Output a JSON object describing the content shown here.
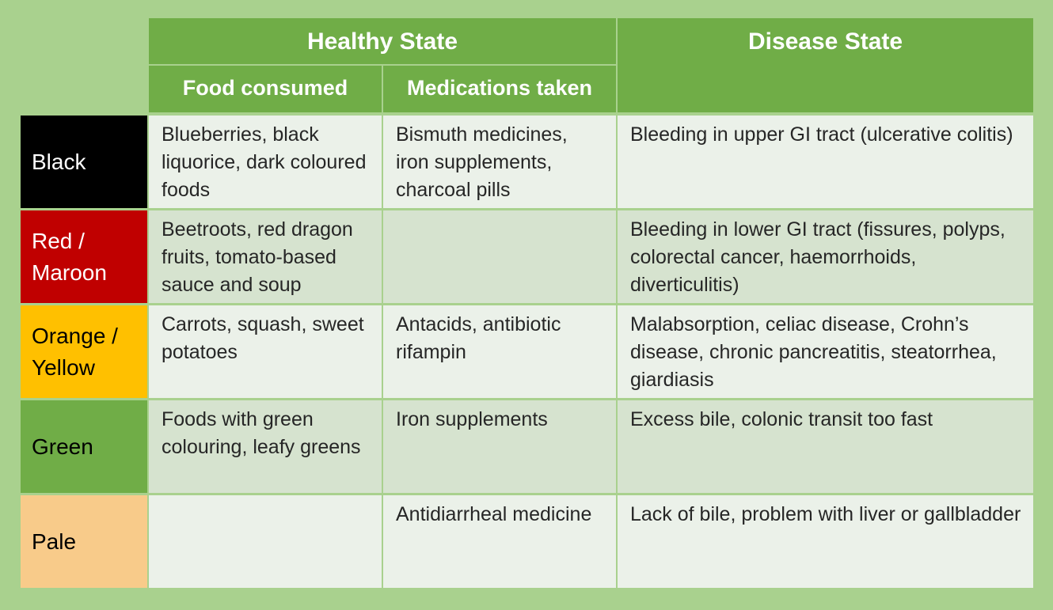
{
  "header": {
    "healthy_state": "Healthy State",
    "disease_state": "Disease State",
    "food_consumed": "Food consumed",
    "medications_taken": "Medications taken"
  },
  "rows": [
    {
      "label": "Black",
      "color": "#000000",
      "text_color": "#ffffff",
      "food": "Blueberries, black liquorice, dark coloured foods",
      "medications": "Bismuth medicines, iron supplements, charcoal pills",
      "disease": "Bleeding in upper GI tract (ulcerative colitis)"
    },
    {
      "label": "Red / Maroon",
      "color": "#c00000",
      "text_color": "#ffffff",
      "food": "Beetroots, red dragon fruits, tomato-based sauce and soup",
      "medications": "",
      "disease": "Bleeding in lower GI tract (fissures, polyps, colorectal cancer, haemorrhoids, diverticulitis)"
    },
    {
      "label": "Orange / Yellow",
      "color": "#ffc000",
      "text_color": "#000000",
      "food": "Carrots, squash, sweet potatoes",
      "medications": "Antacids, antibiotic rifampin",
      "disease": "Malabsorption, celiac disease, Crohn’s disease, chronic pancreatitis, steatorrhea, giardiasis"
    },
    {
      "label": "Green",
      "color": "#70ad47",
      "text_color": "#000000",
      "food": "Foods with green colouring, leafy greens",
      "medications": "Iron supplements",
      "disease": "Excess bile, colonic transit too fast"
    },
    {
      "label": "Pale",
      "color": "#f8cb8a",
      "text_color": "#000000",
      "food": "",
      "medications": "Antidiarrheal medicine",
      "disease": "Lack of bile, problem with liver or gallbladder"
    }
  ]
}
